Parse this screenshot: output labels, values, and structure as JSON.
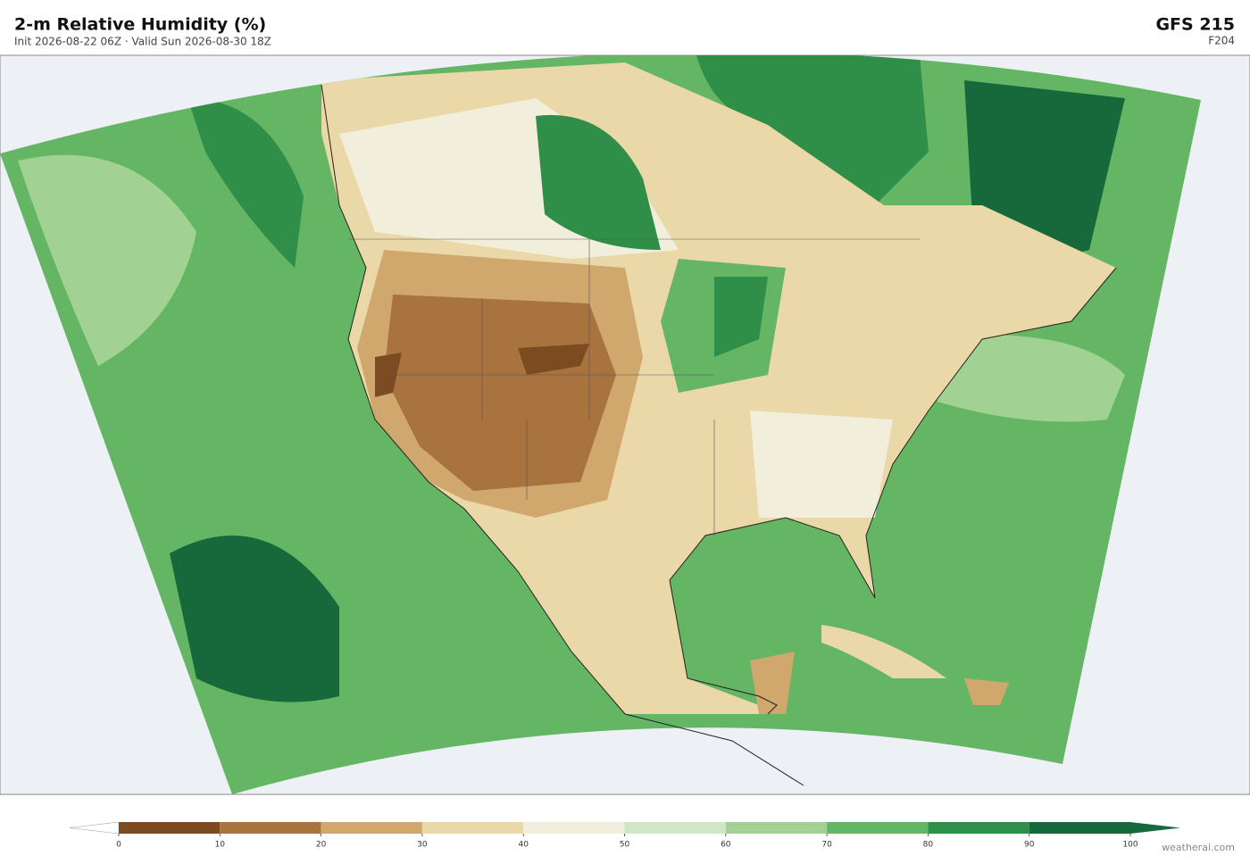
{
  "header": {
    "title": "2-m Relative Humidity  (%)",
    "subtitle": "Init 2026-08-22 06Z  ·  Valid Sun 2026-08-30 18Z",
    "model": "GFS  215",
    "forecast": "F204"
  },
  "colorbar": {
    "ticks": [
      0,
      10,
      20,
      30,
      40,
      50,
      60,
      70,
      80,
      90,
      100
    ],
    "colors": [
      "#7d4b22",
      "#a8733f",
      "#d0a86d",
      "#ebd8a8",
      "#f1efdb",
      "#cfe7c6",
      "#a1d293",
      "#64b564",
      "#2f8e47",
      "#17683a"
    ],
    "under_color": "#ffffff",
    "over_color": "#17683a"
  },
  "credit": "weatherai.com"
}
